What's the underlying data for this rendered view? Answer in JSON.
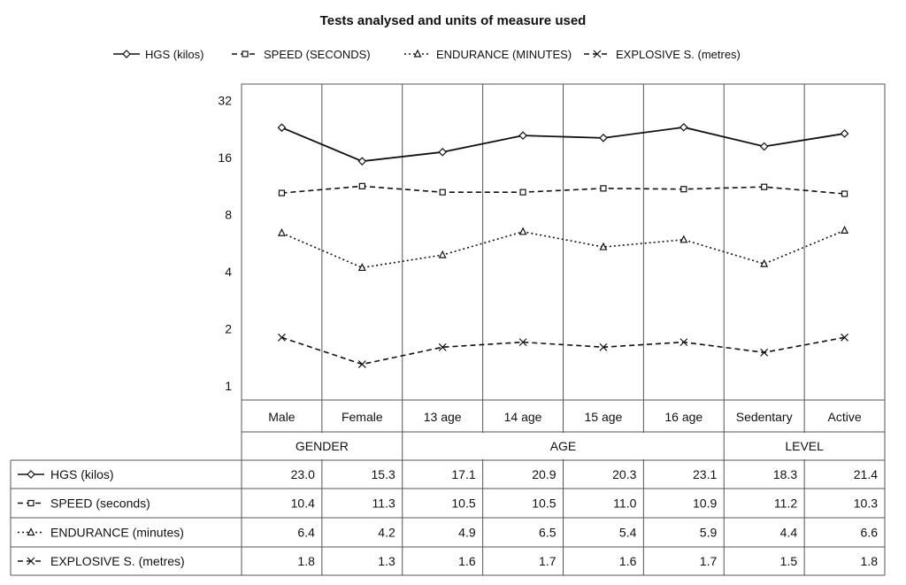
{
  "chart_data": {
    "type": "line",
    "title": "Tests analysed and units of measure used",
    "y_scale": "log2",
    "ylim": [
      1,
      40
    ],
    "y_ticks": [
      1,
      2,
      4,
      8,
      16,
      32
    ],
    "legend_position": "top",
    "categories": [
      "Male",
      "Female",
      "13 age",
      "14 age",
      "15 age",
      "16 age",
      "Sedentary",
      "Active"
    ],
    "groups": [
      {
        "label": "GENDER",
        "span": 2
      },
      {
        "label": "AGE",
        "span": 4
      },
      {
        "label": "LEVEL",
        "span": 2
      }
    ],
    "series": [
      {
        "name": "HGS (kilos)",
        "table_name": "HGS (kilos)",
        "marker": "diamond",
        "dash": "solid",
        "values": [
          23.0,
          15.3,
          17.1,
          20.9,
          20.3,
          23.1,
          18.3,
          21.4
        ],
        "labels": [
          "23.0",
          "15.3",
          "17.1",
          "20.9",
          "20.3",
          "23.1",
          "18.3",
          "21.4"
        ]
      },
      {
        "name": "SPEED (SECONDS)",
        "table_name": "SPEED (seconds)",
        "marker": "square",
        "dash": "dashed",
        "values": [
          10.4,
          11.3,
          10.5,
          10.5,
          11.0,
          10.9,
          11.2,
          10.3
        ],
        "labels": [
          "10.4",
          "11.3",
          "10.5",
          "10.5",
          "11.0",
          "10.9",
          "11.2",
          "10.3"
        ]
      },
      {
        "name": "ENDURANCE (MINUTES)",
        "table_name": "ENDURANCE (minutes)",
        "marker": "triangle",
        "dash": "dotted",
        "values": [
          6.4,
          4.2,
          4.9,
          6.5,
          5.4,
          5.9,
          4.4,
          6.6
        ],
        "labels": [
          "6.4",
          "4.2",
          "4.9",
          "6.5",
          "5.4",
          "5.9",
          "4.4",
          "6.6"
        ]
      },
      {
        "name": "EXPLOSIVE S. (metres)",
        "table_name": "EXPLOSIVE S. (metres)",
        "marker": "x",
        "dash": "dashed",
        "values": [
          1.8,
          1.3,
          1.6,
          1.7,
          1.6,
          1.7,
          1.5,
          1.8
        ],
        "labels": [
          "1.8",
          "1.3",
          "1.6",
          "1.7",
          "1.6",
          "1.7",
          "1.5",
          "1.8"
        ]
      }
    ]
  }
}
